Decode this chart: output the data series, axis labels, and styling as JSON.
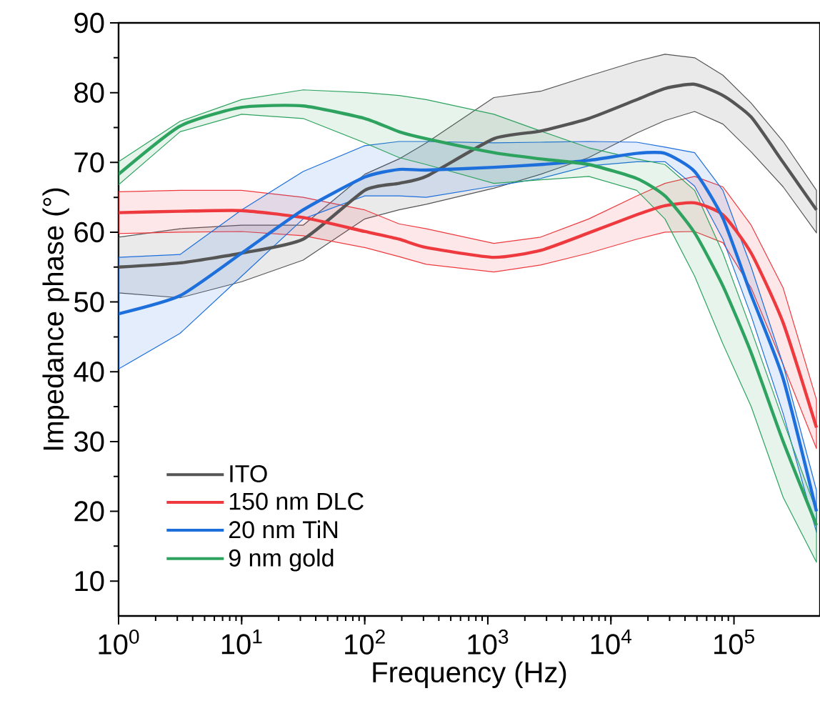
{
  "chart_data": {
    "type": "line",
    "xlabel": "Frequency (Hz)",
    "ylabel": "Impedance phase (°)",
    "log": "x",
    "xlim": [
      1,
      500000
    ],
    "ylim": [
      5,
      90
    ],
    "xticks": [
      {
        "value": 1,
        "label": "10$^{0}$"
      },
      {
        "value": 10,
        "label": "10$^{1}$"
      },
      {
        "value": 100,
        "label": "10$^{2}$"
      },
      {
        "value": 1000,
        "label": "10$^{3}$"
      },
      {
        "value": 10000,
        "label": "10$^{4}$"
      },
      {
        "value": 100000,
        "label": "10$^{5}$"
      }
    ],
    "yticks": [
      10,
      20,
      30,
      40,
      50,
      60,
      70,
      80,
      90
    ],
    "legend": "bottom left",
    "grid": false,
    "marker": "none",
    "line_style": "solid",
    "series": [
      {
        "name": "ITO",
        "color": "#555555",
        "x": [
          1,
          3.16,
          10,
          31.6,
          100,
          190,
          316,
          1120,
          2690,
          6610,
          16200,
          27500,
          47900,
          81300,
          138000,
          251000,
          468000
        ],
        "values": [
          55.0,
          55.6,
          57.0,
          59.0,
          66.0,
          67.0,
          68.0,
          73.4,
          74.5,
          76.3,
          79.0,
          80.6,
          81.2,
          79.6,
          76.5,
          70.0,
          63.2
        ],
        "upper": [
          59.3,
          60.5,
          61.0,
          61.0,
          68.3,
          70.5,
          72.8,
          79.3,
          80.2,
          82.4,
          84.5,
          85.5,
          85.0,
          82.5,
          78.5,
          73.0,
          66.0
        ],
        "lower": [
          51.3,
          50.6,
          52.9,
          56.0,
          61.9,
          63.2,
          64.0,
          66.3,
          68.3,
          70.7,
          74.2,
          76.0,
          77.3,
          75.5,
          71.5,
          66.5,
          59.9
        ]
      },
      {
        "name": "150 nm DLC",
        "color": "#ee3a3f",
        "x": [
          1,
          3.16,
          10,
          31.6,
          100,
          190,
          316,
          1120,
          2690,
          6610,
          16200,
          27500,
          47900,
          81300,
          138000,
          251000,
          468000
        ],
        "values": [
          62.8,
          63.0,
          63.1,
          62.1,
          60.1,
          59.0,
          57.8,
          56.4,
          57.4,
          59.9,
          62.5,
          63.8,
          64.2,
          62.5,
          57.0,
          47.0,
          32.0
        ],
        "upper": [
          65.8,
          66.0,
          66.0,
          65.0,
          63.2,
          61.2,
          60.5,
          58.4,
          59.3,
          61.9,
          65.2,
          67.0,
          68.0,
          66.5,
          61.0,
          52.0,
          36.0
        ],
        "lower": [
          59.8,
          60.0,
          60.1,
          59.5,
          57.8,
          56.5,
          55.4,
          54.3,
          55.3,
          57.0,
          59.0,
          60.0,
          60.1,
          58.5,
          52.0,
          41.0,
          29.0
        ]
      },
      {
        "name": "20 nm TiN",
        "color": "#1d6fdc",
        "x": [
          1,
          3.16,
          10,
          31.6,
          100,
          190,
          316,
          1120,
          2690,
          6610,
          16200,
          27500,
          47900,
          81300,
          138000,
          251000,
          468000
        ],
        "values": [
          48.3,
          50.9,
          57.0,
          63.2,
          67.9,
          69.0,
          68.9,
          69.3,
          69.7,
          70.3,
          71.3,
          71.3,
          68.7,
          62.0,
          51.0,
          39.0,
          20.0
        ],
        "upper": [
          56.4,
          56.8,
          63.2,
          68.7,
          72.4,
          73.0,
          73.0,
          72.8,
          72.9,
          73.0,
          72.9,
          72.2,
          71.4,
          66.0,
          55.0,
          41.0,
          23.0
        ],
        "lower": [
          40.4,
          45.5,
          53.7,
          61.9,
          65.2,
          65.2,
          65.0,
          66.6,
          67.7,
          69.5,
          70.1,
          70.1,
          66.6,
          59.0,
          48.0,
          34.0,
          17.0
        ]
      },
      {
        "name": "9 nm gold",
        "color": "#2ea35f",
        "x": [
          1,
          3.16,
          10,
          31.6,
          100,
          190,
          316,
          1120,
          2690,
          6610,
          16200,
          27500,
          47900,
          81300,
          138000,
          251000,
          468000
        ],
        "values": [
          68.3,
          75.2,
          77.9,
          78.1,
          76.3,
          74.4,
          73.4,
          71.4,
          70.5,
          69.7,
          67.7,
          65.2,
          59.9,
          52.3,
          42.7,
          30.0,
          18.0
        ],
        "upper": [
          70.1,
          75.9,
          79.0,
          80.4,
          80.0,
          79.6,
          79.0,
          76.9,
          74.5,
          72.1,
          70.5,
          69.7,
          66.0,
          57.0,
          46.0,
          33.0,
          20.0
        ],
        "lower": [
          66.8,
          74.4,
          76.9,
          76.3,
          72.8,
          70.7,
          69.7,
          67.0,
          67.5,
          68.0,
          66.0,
          61.9,
          53.7,
          44.0,
          35.0,
          22.0,
          12.7
        ]
      }
    ]
  }
}
